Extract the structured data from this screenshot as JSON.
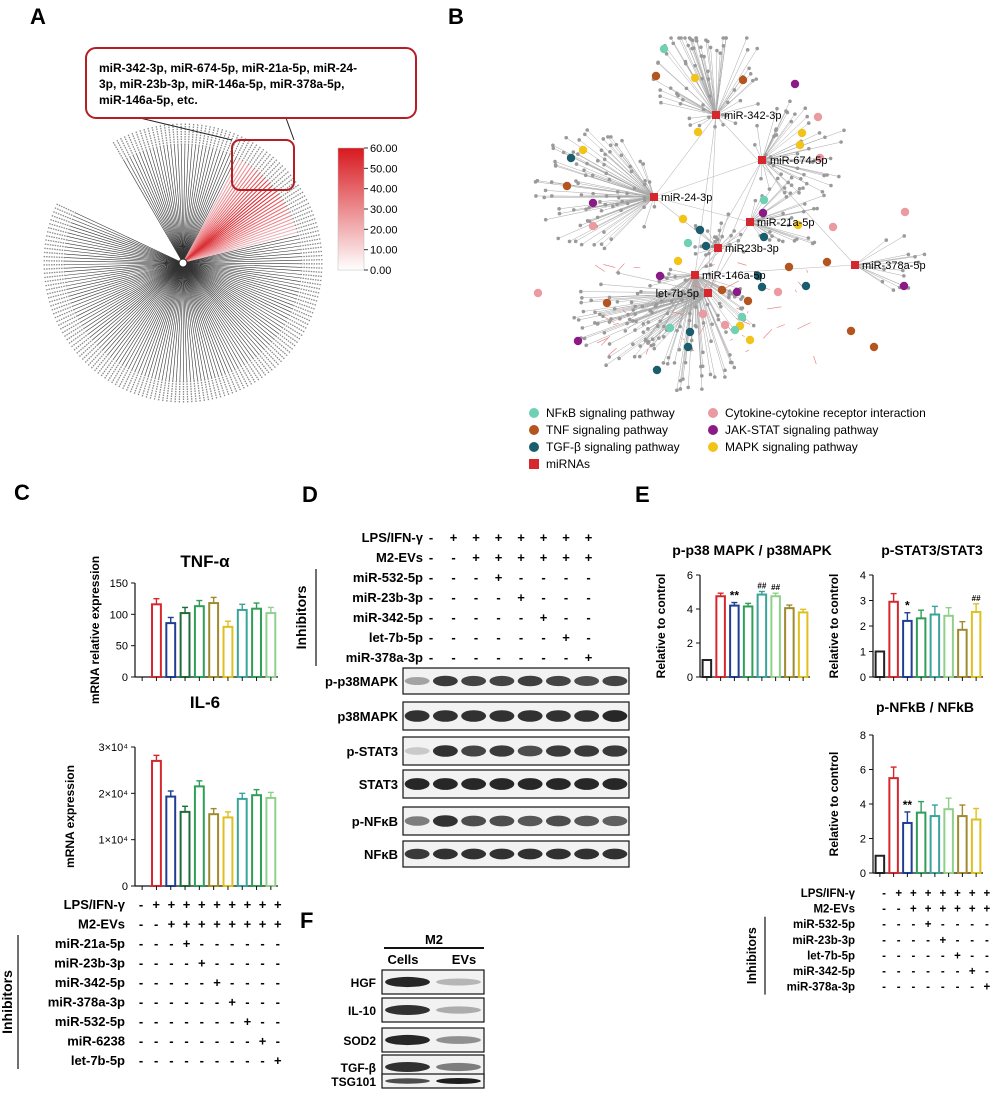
{
  "panel_letters": {
    "a": "A",
    "b": "B",
    "c": "C",
    "d": "D",
    "e": "E",
    "f": "F"
  },
  "colors": {
    "red": "#d7272e",
    "blue": "#1f3f94",
    "green": "#2f9e57",
    "darkgreen": "#1f6b3a",
    "olive": "#a08a2e",
    "yellow": "#e0c020",
    "lightgreen": "#8fd18a",
    "teal": "#3aa39a",
    "nfkb": "#6fd0b4",
    "tnf": "#b4541f",
    "tgf": "#1a5e6e",
    "cytokine": "#ea9aa0",
    "jak": "#8b1a86",
    "mapk": "#f2c41a"
  },
  "panelA": {
    "callout_text": [
      "miR-342-3p, miR-674-5p, miR-21a-5p, miR-24-",
      "3p, miR-23b-3p, miR-146a-5p, miR-378a-5p,",
      "miR-146a-5p, etc."
    ],
    "colorbar_ticks": [
      "60.00",
      "50.00",
      "40.00",
      "30.00",
      "20.00",
      "10.00",
      "0.00"
    ]
  },
  "panelB": {
    "mirnas": [
      "miR-342-3p",
      "miR-674-5p",
      "miR-24-3p",
      "miR-21a-5p",
      "miR23b-3p",
      "miR-146a-5p",
      "let-7b-5p",
      "miR-378a-5p"
    ],
    "legend": [
      {
        "label": "NFκB signaling pathway",
        "color": "#6fd0b4",
        "shape": "circle"
      },
      {
        "label": "TNF signaling pathway",
        "color": "#b4541f",
        "shape": "circle"
      },
      {
        "label": "TGF-β signaling pathway",
        "color": "#1a5e6e",
        "shape": "circle"
      },
      {
        "label": "miRNAs",
        "color": "#d7272e",
        "shape": "square"
      },
      {
        "label": "Cytokine-cytokine receptor interaction",
        "color": "#ea9aa0",
        "shape": "circle"
      },
      {
        "label": "JAK-STAT signaling pathway",
        "color": "#8b1a86",
        "shape": "circle"
      },
      {
        "label": "MAPK signaling pathway",
        "color": "#f2c41a",
        "shape": "circle"
      }
    ]
  },
  "chart_data": [
    {
      "id": "C-TNF",
      "type": "bar",
      "title": "TNF-α",
      "ylabel": "mRNA relative expression",
      "ylim": [
        0,
        150
      ],
      "yticks": [
        "0",
        "50",
        "100",
        "150"
      ],
      "values": [
        0,
        116,
        86,
        102,
        113,
        118,
        80,
        107,
        109,
        102
      ]
    },
    {
      "id": "C-IL6",
      "type": "bar",
      "title": "IL-6",
      "ylabel": "mRNA expression",
      "ylim": [
        0,
        30000
      ],
      "yticks": [
        "0",
        "1×10⁴",
        "2×10⁴",
        "3×10⁴"
      ],
      "values": [
        0,
        27000,
        19300,
        16000,
        21500,
        15500,
        14800,
        18800,
        19600,
        19000
      ]
    },
    {
      "id": "E-p38",
      "type": "bar",
      "title": "p-p38 MAPK / p38MAPK",
      "ylabel": "Relative to control",
      "ylim": [
        0,
        6
      ],
      "yticks": [
        "0",
        "2",
        "4",
        "6"
      ],
      "values": [
        1,
        4.75,
        4.2,
        4.15,
        4.85,
        4.75,
        4.05,
        3.8
      ],
      "annotations": [
        "",
        "",
        "**",
        "",
        "##",
        "##",
        "",
        ""
      ]
    },
    {
      "id": "E-STAT3",
      "type": "bar",
      "title": "p-STAT3/STAT3",
      "ylabel": "Relative to control",
      "ylim": [
        0,
        4
      ],
      "yticks": [
        "0",
        "1",
        "2",
        "3",
        "4"
      ],
      "values": [
        1,
        2.95,
        2.2,
        2.3,
        2.45,
        2.4,
        1.85,
        2.55
      ],
      "annotations": [
        "",
        "",
        "*",
        "",
        "",
        "",
        "",
        "##"
      ]
    },
    {
      "id": "E-NFkB",
      "type": "bar",
      "title": "p-NFkB / NFkB",
      "ylabel": "Relative to control",
      "ylim": [
        0,
        8
      ],
      "yticks": [
        "0",
        "2",
        "4",
        "6",
        "8"
      ],
      "values": [
        1,
        5.5,
        2.9,
        3.5,
        3.3,
        3.7,
        3.3,
        3.1
      ],
      "annotations": [
        "",
        "",
        "**",
        "",
        "",
        "",
        "",
        ""
      ]
    }
  ],
  "panelC_conditions": {
    "rows": [
      {
        "label": "LPS/IFN-γ",
        "signs": [
          "-",
          "+",
          "+",
          "+",
          "+",
          "+",
          "+",
          "+",
          "+",
          "+"
        ]
      },
      {
        "label": "M2-EVs",
        "signs": [
          "-",
          "-",
          "+",
          "+",
          "+",
          "+",
          "+",
          "+",
          "+",
          "+"
        ]
      },
      {
        "label": "miR-21a-5p",
        "signs": [
          "-",
          "-",
          "-",
          "+",
          "-",
          "-",
          "-",
          "-",
          "-",
          "-"
        ]
      },
      {
        "label": "miR-23b-3p",
        "signs": [
          "-",
          "-",
          "-",
          "-",
          "+",
          "-",
          "-",
          "-",
          "-",
          "-"
        ]
      },
      {
        "label": "miR-342-5p",
        "signs": [
          "-",
          "-",
          "-",
          "-",
          "-",
          "+",
          "-",
          "-",
          "-",
          "-"
        ]
      },
      {
        "label": "miR-378a-3p",
        "signs": [
          "-",
          "-",
          "-",
          "-",
          "-",
          "-",
          "+",
          "-",
          "-",
          "-"
        ]
      },
      {
        "label": "miR-532-5p",
        "signs": [
          "-",
          "-",
          "-",
          "-",
          "-",
          "-",
          "-",
          "+",
          "-",
          "-"
        ]
      },
      {
        "label": "miR-6238",
        "signs": [
          "-",
          "-",
          "-",
          "-",
          "-",
          "-",
          "-",
          "-",
          "+",
          "-"
        ]
      },
      {
        "label": "let-7b-5p",
        "signs": [
          "-",
          "-",
          "-",
          "-",
          "-",
          "-",
          "-",
          "-",
          "-",
          "+"
        ]
      }
    ],
    "inhibitors_label": "Inhibitors"
  },
  "panelD": {
    "rows": [
      {
        "label": "LPS/IFN-γ",
        "signs": [
          "-",
          "+",
          "+",
          "+",
          "+",
          "+",
          "+",
          "+"
        ]
      },
      {
        "label": "M2-EVs",
        "signs": [
          "-",
          "-",
          "+",
          "+",
          "+",
          "+",
          "+",
          "+"
        ]
      },
      {
        "label": "miR-532-5p",
        "signs": [
          "-",
          "-",
          "-",
          "+",
          "-",
          "-",
          "-",
          "-"
        ]
      },
      {
        "label": "miR-23b-3p",
        "signs": [
          "-",
          "-",
          "-",
          "-",
          "+",
          "-",
          "-",
          "-"
        ]
      },
      {
        "label": "miR-342-5p",
        "signs": [
          "-",
          "-",
          "-",
          "-",
          "-",
          "+",
          "-",
          "-"
        ]
      },
      {
        "label": "let-7b-5p",
        "signs": [
          "-",
          "-",
          "-",
          "-",
          "-",
          "-",
          "+",
          "-"
        ]
      },
      {
        "label": "miR-378a-3p",
        "signs": [
          "-",
          "-",
          "-",
          "-",
          "-",
          "-",
          "-",
          "+"
        ]
      }
    ],
    "inhibitors_label": "Inhibitors",
    "blots": [
      "p-p38MAPK",
      "p38MAPK",
      "p-STAT3",
      "STAT3",
      "p-NFκB",
      "NFκB"
    ]
  },
  "panelE_conditions": {
    "rows": [
      {
        "label": "LPS/IFN-γ",
        "signs": [
          "-",
          "+",
          "+",
          "+",
          "+",
          "+",
          "+",
          "+"
        ]
      },
      {
        "label": "M2-EVs",
        "signs": [
          "-",
          "-",
          "+",
          "+",
          "+",
          "+",
          "+",
          "+"
        ]
      },
      {
        "label": "miR-532-5p",
        "signs": [
          "-",
          "-",
          "-",
          "+",
          "-",
          "-",
          "-",
          "-"
        ]
      },
      {
        "label": "miR-23b-3p",
        "signs": [
          "-",
          "-",
          "-",
          "-",
          "+",
          "-",
          "-",
          "-"
        ]
      },
      {
        "label": "let-7b-5p",
        "signs": [
          "-",
          "-",
          "-",
          "-",
          "-",
          "+",
          "-",
          "-"
        ]
      },
      {
        "label": "miR-342-5p",
        "signs": [
          "-",
          "-",
          "-",
          "-",
          "-",
          "-",
          "+",
          "-"
        ]
      },
      {
        "label": "miR-378a-3p",
        "signs": [
          "-",
          "-",
          "-",
          "-",
          "-",
          "-",
          "-",
          "+"
        ]
      }
    ],
    "inhibitors_label": "Inhibitors"
  },
  "panelF": {
    "header": "M2",
    "cols": [
      "Cells",
      "EVs"
    ],
    "blots": [
      "HGF",
      "IL-10",
      "SOD2",
      "TGF-β",
      "TSG101"
    ]
  }
}
